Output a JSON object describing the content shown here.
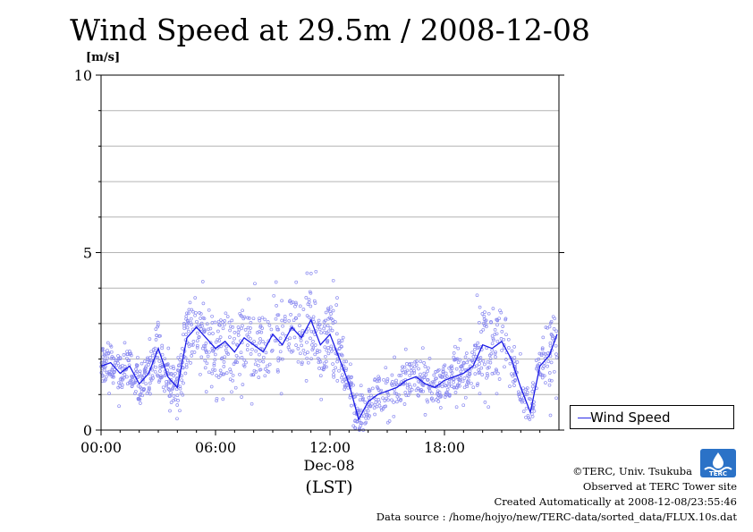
{
  "title": "Wind Speed at 29.5m / 2008-12-08",
  "ylabel": "[m/s]",
  "xlabel_date": "Dec-08",
  "xlabel_unit": "(LST)",
  "legend_label": "Wind Speed",
  "footer": {
    "credit": "©TERC, Univ. Tsukuba",
    "observed": "Observed at TERC Tower site",
    "created": "Created Automatically at 2008-12-08/23:55:46",
    "source": "Data source : /home/hojyo/new/TERC-data/sorted_data/FLUX.10s.dat"
  },
  "logo_text": "TERC",
  "colors": {
    "line": "#1a1ae6",
    "points": "#8b8bf0",
    "grid": "#b4b4b4"
  },
  "chart_data": {
    "type": "line",
    "title": "Wind Speed at 29.5m / 2008-12-08",
    "ylabel": "[m/s]",
    "xlabel": "Dec-08 (LST)",
    "xticks": [
      "00:00",
      "06:00",
      "12:00",
      "18:00"
    ],
    "xtick_hours": [
      0,
      6,
      12,
      18
    ],
    "xlim_hours": [
      0,
      24
    ],
    "yticks": [
      0,
      5,
      10
    ],
    "ylim": [
      0,
      10
    ],
    "grid": true,
    "legend_position": "right",
    "series": [
      {
        "name": "Wind Speed",
        "x_hours": [
          0,
          0.5,
          1,
          1.5,
          2,
          2.5,
          3,
          3.5,
          4,
          4.5,
          5,
          5.5,
          6,
          6.5,
          7,
          7.5,
          8,
          8.5,
          9,
          9.5,
          10,
          10.5,
          11,
          11.5,
          12,
          12.5,
          13,
          13.5,
          14,
          14.5,
          15,
          15.5,
          16,
          16.5,
          17,
          17.5,
          18,
          18.5,
          19,
          19.5,
          20,
          20.5,
          21,
          21.5,
          22,
          22.5,
          23,
          23.5,
          23.9
        ],
        "values": [
          1.8,
          1.9,
          1.6,
          1.8,
          1.3,
          1.6,
          2.3,
          1.5,
          1.2,
          2.6,
          2.9,
          2.6,
          2.3,
          2.5,
          2.2,
          2.6,
          2.4,
          2.2,
          2.7,
          2.4,
          2.9,
          2.6,
          3.1,
          2.4,
          2.7,
          2.0,
          1.3,
          0.3,
          0.8,
          1.0,
          1.1,
          1.2,
          1.4,
          1.5,
          1.3,
          1.2,
          1.4,
          1.5,
          1.6,
          1.8,
          2.4,
          2.3,
          2.5,
          2.0,
          1.2,
          0.5,
          1.8,
          2.1,
          2.7
        ]
      }
    ]
  }
}
